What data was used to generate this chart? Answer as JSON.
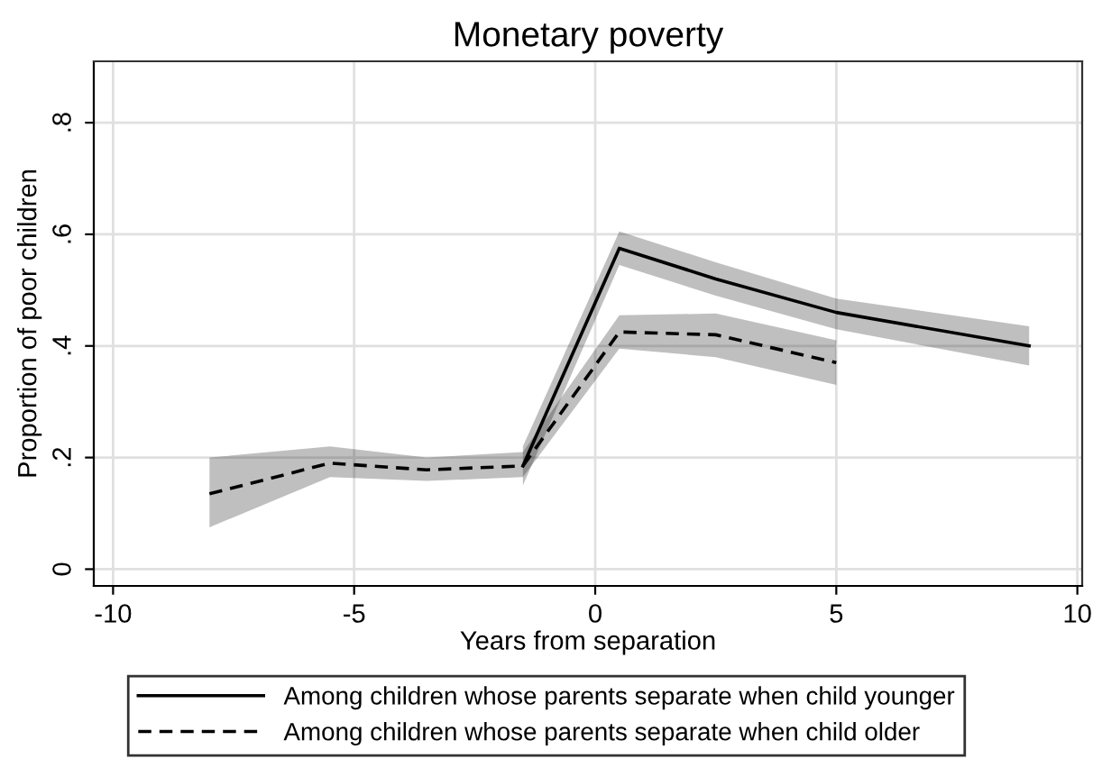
{
  "chart_data": {
    "type": "line",
    "title": "Monetary poverty",
    "xlabel": "Years from separation",
    "ylabel": "Proportion of poor children",
    "series": [
      {
        "name": "Among children whose parents separate when child younger",
        "color": "#000000",
        "line_style": "solid",
        "x": [
          -1.5,
          0.5,
          2.5,
          5,
          9
        ],
        "values": [
          0.185,
          0.575,
          0.52,
          0.46,
          0.4
        ],
        "lower": [
          0.15,
          0.545,
          0.49,
          0.43,
          0.365
        ],
        "upper": [
          0.22,
          0.605,
          0.55,
          0.485,
          0.435
        ]
      },
      {
        "name": "Among children whose parents separate when child older",
        "color": "#000000",
        "line_style": "dashed",
        "x": [
          -8,
          -5.5,
          -3.5,
          -1.5,
          0.5,
          2.5,
          5
        ],
        "values": [
          0.135,
          0.19,
          0.178,
          0.185,
          0.425,
          0.42,
          0.37
        ],
        "lower": [
          0.075,
          0.165,
          0.158,
          0.165,
          0.395,
          0.38,
          0.33
        ],
        "upper": [
          0.2,
          0.22,
          0.2,
          0.21,
          0.455,
          0.458,
          0.41
        ]
      }
    ],
    "xlim": [
      -10.4,
      10.1
    ],
    "xticks": [
      -10,
      -5,
      0,
      5,
      10
    ],
    "ylim": [
      -0.03,
      0.91
    ],
    "yticks": [
      {
        "value": 0,
        "label": "0"
      },
      {
        "value": 0.2,
        "label": ".2"
      },
      {
        "value": 0.4,
        "label": ".4"
      },
      {
        "value": 0.6,
        "label": ".6"
      },
      {
        "value": 0.8,
        "label": ".8"
      }
    ],
    "grid": true,
    "legend": "bottom",
    "marker": "none"
  }
}
